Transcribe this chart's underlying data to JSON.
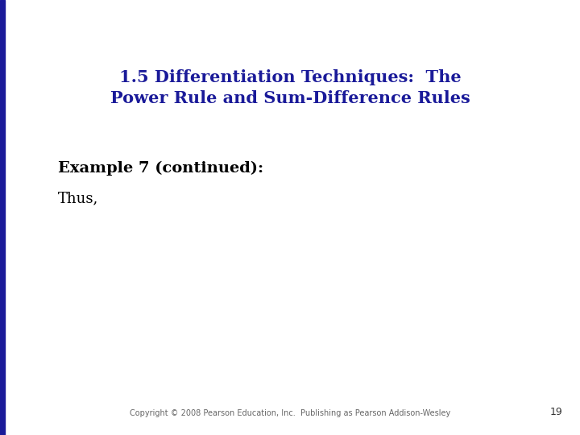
{
  "title_line1": "1.5 Differentiation Techniques:  The",
  "title_line2": "Power Rule and Sum-Difference Rules",
  "title_color": "#1a1a99",
  "example_label": "Example 7 (continued):",
  "thus_label": "Thus,",
  "body_text_color": "#000000",
  "background_color": "#ffffff",
  "left_bar_color": "#1a1a99",
  "left_bar_width": 0.008,
  "copyright_text": "Copyright © 2008 Pearson Education, Inc.  Publishing as Pearson Addison-Wesley",
  "page_number": "19",
  "title_fontsize": 15,
  "example_fontsize": 14,
  "thus_fontsize": 13,
  "copyright_fontsize": 7
}
